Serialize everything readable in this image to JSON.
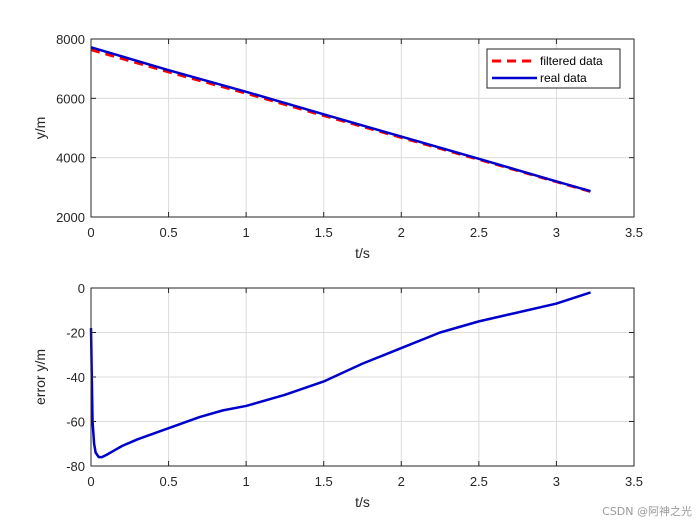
{
  "watermark": "CSDN @阿神之光",
  "colors": {
    "filtered": "#ff0000",
    "real": "#0000cc",
    "error": "#0000cc",
    "grid": "#dcdcdc",
    "axis": "#262626"
  },
  "chart_data": [
    {
      "type": "line",
      "xlabel": "t/s",
      "ylabel": "y/m",
      "xlim": [
        0,
        3.5
      ],
      "ylim": [
        2000,
        8000
      ],
      "xticks": [
        0,
        0.5,
        1,
        1.5,
        2,
        2.5,
        3,
        3.5
      ],
      "xtick_labels": [
        "0",
        "0.5",
        "1",
        "1.5",
        "2",
        "2.5",
        "3",
        "3.5"
      ],
      "yticks": [
        2000,
        4000,
        6000,
        8000
      ],
      "ytick_labels": [
        "2000",
        "4000",
        "6000",
        "8000"
      ],
      "grid": true,
      "legend_position": "top-right",
      "series": [
        {
          "name": "filtered data",
          "style": "dashed",
          "color": "#ff0000",
          "x": [
            0,
            0.5,
            1,
            1.5,
            2,
            2.5,
            3,
            3.22
          ],
          "y": [
            7640,
            6890,
            6170,
            5420,
            4680,
            3940,
            3190,
            2860
          ]
        },
        {
          "name": "real data",
          "style": "solid",
          "color": "#0000cc",
          "x": [
            0,
            0.5,
            1,
            1.5,
            2,
            2.5,
            3,
            3.22
          ],
          "y": [
            7720,
            6950,
            6220,
            5460,
            4710,
            3960,
            3200,
            2870
          ]
        }
      ]
    },
    {
      "type": "line",
      "xlabel": "t/s",
      "ylabel": "error y/m",
      "xlim": [
        0,
        3.5
      ],
      "ylim": [
        -80,
        0
      ],
      "xticks": [
        0,
        0.5,
        1,
        1.5,
        2,
        2.5,
        3,
        3.5
      ],
      "xtick_labels": [
        "0",
        "0.5",
        "1",
        "1.5",
        "2",
        "2.5",
        "3",
        "3.5"
      ],
      "yticks": [
        -80,
        -60,
        -40,
        -20,
        0
      ],
      "ytick_labels": [
        "-80",
        "-60",
        "-40",
        "-20",
        "0"
      ],
      "grid": true,
      "series": [
        {
          "color": "#0000cc",
          "x": [
            0,
            0.005,
            0.01,
            0.02,
            0.03,
            0.05,
            0.07,
            0.1,
            0.15,
            0.2,
            0.3,
            0.5,
            0.7,
            0.85,
            1.0,
            1.25,
            1.5,
            1.75,
            2.0,
            2.25,
            2.5,
            2.75,
            3.0,
            3.22
          ],
          "y": [
            -18,
            -40,
            -60,
            -70,
            -74,
            -76,
            -76,
            -75,
            -73,
            -71,
            -68,
            -63,
            -58,
            -55,
            -53,
            -48,
            -42,
            -34,
            -27,
            -20,
            -15,
            -11,
            -7,
            -2
          ]
        }
      ]
    }
  ]
}
